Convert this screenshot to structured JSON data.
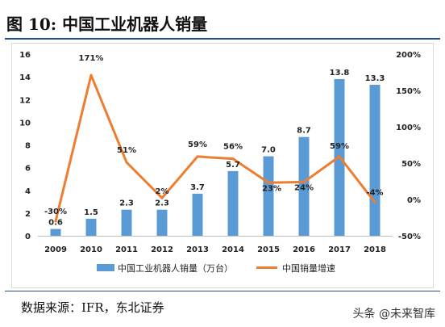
{
  "figure": {
    "title": "图  10:  中国工业机器人销量",
    "source": "数据来源：IFR，东北证券",
    "watermark": "头条 @未来智库"
  },
  "colors": {
    "bar": "#5b9bd5",
    "line": "#ed7d31",
    "rule": "#1f4e9a"
  },
  "chart_data": {
    "type": "bar+line",
    "categories": [
      "2009",
      "2010",
      "2011",
      "2012",
      "2013",
      "2014",
      "2015",
      "2016",
      "2017",
      "2018"
    ],
    "series": [
      {
        "name": "中国工业机器人销量（万台）",
        "type": "bar",
        "axis": "left",
        "values": [
          0.6,
          1.5,
          2.3,
          2.3,
          3.7,
          5.7,
          7.0,
          8.7,
          13.8,
          13.3
        ],
        "labels": [
          "0.6",
          "1.5",
          "2.3",
          "2.3",
          "3.7",
          "5.7",
          "7.0",
          "8.7",
          "13.8",
          "13.3"
        ]
      },
      {
        "name": "中国销量增速",
        "type": "line",
        "axis": "right",
        "values": [
          -30,
          171,
          51,
          2,
          59,
          56,
          23,
          24,
          59,
          -4
        ],
        "labels": [
          "-30%",
          "171%",
          "51%",
          "2%",
          "59%",
          "56%",
          "23%",
          "24%",
          "59%",
          "-4%"
        ]
      }
    ],
    "y_left": {
      "lim": [
        0,
        16
      ],
      "ticks": [
        "0",
        "2",
        "4",
        "6",
        "8",
        "10",
        "12",
        "14",
        "16"
      ]
    },
    "y_right": {
      "lim": [
        -50,
        200
      ],
      "ticks": [
        "-50%",
        "0%",
        "50%",
        "100%",
        "150%",
        "200%"
      ]
    },
    "legend": "bottom",
    "grid": false
  }
}
